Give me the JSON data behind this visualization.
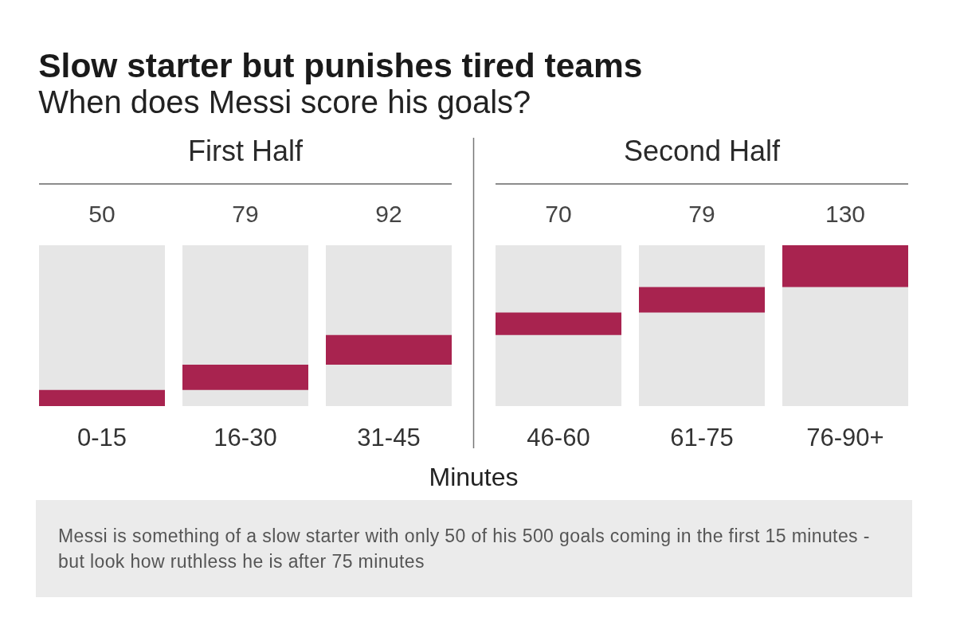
{
  "chart_data": {
    "type": "other",
    "title": "Slow starter but punishes tired teams",
    "subtitle": "When does Messi score his goals?",
    "xlabel": "Minutes",
    "categories": [
      "0-15",
      "16-30",
      "31-45",
      "46-60",
      "61-75",
      "76-90+"
    ],
    "values": [
      50,
      79,
      92,
      70,
      79,
      130
    ],
    "color": "#a8234f",
    "data_labels": true,
    "annotations": [
      "First Half",
      "Second Half",
      "Messi is something of a slow starter with only 50 of his 500 goals coming in the first 15 minutes - but look how ruthless he is after 75 minutes"
    ]
  }
}
